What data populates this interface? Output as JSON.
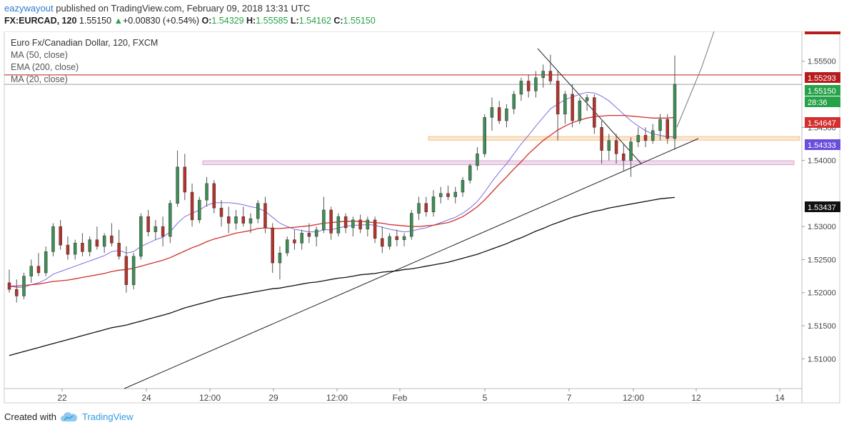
{
  "header": {
    "author": "eazywayout",
    "published_text": "published on TradingView.com, February 09, 2018 13:31 UTC",
    "symbol": "FX:EURCAD, 120",
    "last": "1.55150",
    "change_arrow": "▲",
    "change": "+0.00830 (+0.54%)",
    "o_label": "O:",
    "o_value": "1.54329",
    "h_label": "H:",
    "h_value": "1.55585",
    "l_label": "L:",
    "l_value": "1.54162",
    "c_label": "C:",
    "c_value": "1.55150"
  },
  "legend": {
    "title": "Euro Fx/Canadian Dollar, 120, FXCM",
    "items": [
      "MA (50, close)",
      "EMA (200, close)",
      "MA (20, close)"
    ]
  },
  "footer": {
    "created_with": "Created with",
    "brand": "TradingView",
    "logo_icon": "tradingview-cloud-icon"
  },
  "chart_data": {
    "type": "candlestick",
    "ylim": [
      1.5055,
      1.5595
    ],
    "y_ticks": [
      "1.55500",
      "1.54500",
      "1.54000",
      "1.53000",
      "1.52500",
      "1.52000",
      "1.51500",
      "1.51000"
    ],
    "x_ticks": [
      "22",
      "24",
      "12:00",
      "29",
      "12:00",
      "Feb",
      "5",
      "7",
      "12:00",
      "12",
      "14"
    ],
    "price_labels": [
      {
        "text": "1.55293",
        "value": 1.55293,
        "color": "#b71c1c"
      },
      {
        "text": "1.55150",
        "value": 1.5515,
        "color": "#26a248"
      },
      {
        "text": "28:36",
        "value": 1.55,
        "color": "#26a248"
      },
      {
        "text": "1.54647",
        "value": 1.54647,
        "color": "#d32f2f"
      },
      {
        "text": "1.54333",
        "value": 1.54333,
        "color": "#6a4ddb"
      },
      {
        "text": "1.53437",
        "value": 1.53437,
        "color": "#111111"
      }
    ],
    "horizontal_lines": [
      {
        "value": 1.55293,
        "color": "#b71c1c"
      },
      {
        "value": 1.5515,
        "color": "#9e9e9e"
      }
    ],
    "zones": [
      {
        "low": 1.54305,
        "high": 1.5436,
        "color": "#f6c48a",
        "fill": "#fbe7d3"
      },
      {
        "low": 1.53935,
        "high": 1.53995,
        "color": "#d9a6cf",
        "fill": "#f0dbea"
      }
    ],
    "candles": [
      {
        "o": 1.5215,
        "h": 1.5235,
        "l": 1.52,
        "c": 1.5205
      },
      {
        "o": 1.5205,
        "h": 1.522,
        "l": 1.5185,
        "c": 1.5195
      },
      {
        "o": 1.5195,
        "h": 1.523,
        "l": 1.519,
        "c": 1.5225
      },
      {
        "o": 1.5225,
        "h": 1.525,
        "l": 1.5215,
        "c": 1.524
      },
      {
        "o": 1.524,
        "h": 1.526,
        "l": 1.5225,
        "c": 1.523
      },
      {
        "o": 1.523,
        "h": 1.527,
        "l": 1.5225,
        "c": 1.5262
      },
      {
        "o": 1.5262,
        "h": 1.5305,
        "l": 1.5255,
        "c": 1.53
      },
      {
        "o": 1.53,
        "h": 1.531,
        "l": 1.5265,
        "c": 1.5272
      },
      {
        "o": 1.5272,
        "h": 1.5285,
        "l": 1.525,
        "c": 1.5258
      },
      {
        "o": 1.5258,
        "h": 1.528,
        "l": 1.525,
        "c": 1.5275
      },
      {
        "o": 1.5275,
        "h": 1.529,
        "l": 1.5255,
        "c": 1.5262
      },
      {
        "o": 1.5262,
        "h": 1.5285,
        "l": 1.5255,
        "c": 1.528
      },
      {
        "o": 1.528,
        "h": 1.53,
        "l": 1.5265,
        "c": 1.527
      },
      {
        "o": 1.527,
        "h": 1.529,
        "l": 1.526,
        "c": 1.5286
      },
      {
        "o": 1.5286,
        "h": 1.5305,
        "l": 1.527,
        "c": 1.5275
      },
      {
        "o": 1.5275,
        "h": 1.5295,
        "l": 1.525,
        "c": 1.5255
      },
      {
        "o": 1.5255,
        "h": 1.527,
        "l": 1.52,
        "c": 1.5212
      },
      {
        "o": 1.5212,
        "h": 1.526,
        "l": 1.5205,
        "c": 1.5255
      },
      {
        "o": 1.5255,
        "h": 1.532,
        "l": 1.525,
        "c": 1.5315
      },
      {
        "o": 1.5315,
        "h": 1.5325,
        "l": 1.5285,
        "c": 1.5292
      },
      {
        "o": 1.5292,
        "h": 1.531,
        "l": 1.528,
        "c": 1.53
      },
      {
        "o": 1.53,
        "h": 1.5315,
        "l": 1.527,
        "c": 1.5285
      },
      {
        "o": 1.5285,
        "h": 1.534,
        "l": 1.5275,
        "c": 1.5335
      },
      {
        "o": 1.5335,
        "h": 1.5415,
        "l": 1.533,
        "c": 1.539
      },
      {
        "o": 1.539,
        "h": 1.541,
        "l": 1.534,
        "c": 1.5352
      },
      {
        "o": 1.5352,
        "h": 1.5365,
        "l": 1.53,
        "c": 1.531
      },
      {
        "o": 1.531,
        "h": 1.5345,
        "l": 1.5305,
        "c": 1.534
      },
      {
        "o": 1.534,
        "h": 1.5375,
        "l": 1.533,
        "c": 1.5365
      },
      {
        "o": 1.5365,
        "h": 1.537,
        "l": 1.532,
        "c": 1.5328
      },
      {
        "o": 1.5328,
        "h": 1.534,
        "l": 1.53,
        "c": 1.5315
      },
      {
        "o": 1.5315,
        "h": 1.533,
        "l": 1.529,
        "c": 1.5305
      },
      {
        "o": 1.5305,
        "h": 1.5325,
        "l": 1.5295,
        "c": 1.5315
      },
      {
        "o": 1.5315,
        "h": 1.533,
        "l": 1.53,
        "c": 1.5305
      },
      {
        "o": 1.5305,
        "h": 1.532,
        "l": 1.529,
        "c": 1.5312
      },
      {
        "o": 1.5312,
        "h": 1.534,
        "l": 1.5305,
        "c": 1.5335
      },
      {
        "o": 1.5335,
        "h": 1.5345,
        "l": 1.529,
        "c": 1.5298
      },
      {
        "o": 1.5298,
        "h": 1.5305,
        "l": 1.523,
        "c": 1.5245
      },
      {
        "o": 1.5245,
        "h": 1.527,
        "l": 1.522,
        "c": 1.526
      },
      {
        "o": 1.526,
        "h": 1.5285,
        "l": 1.5255,
        "c": 1.528
      },
      {
        "o": 1.528,
        "h": 1.5295,
        "l": 1.5265,
        "c": 1.5275
      },
      {
        "o": 1.5275,
        "h": 1.5295,
        "l": 1.5265,
        "c": 1.529
      },
      {
        "o": 1.529,
        "h": 1.5305,
        "l": 1.5275,
        "c": 1.5285
      },
      {
        "o": 1.5285,
        "h": 1.53,
        "l": 1.527,
        "c": 1.5295
      },
      {
        "o": 1.5295,
        "h": 1.5345,
        "l": 1.529,
        "c": 1.5325
      },
      {
        "o": 1.5325,
        "h": 1.533,
        "l": 1.528,
        "c": 1.529
      },
      {
        "o": 1.529,
        "h": 1.532,
        "l": 1.5285,
        "c": 1.5315
      },
      {
        "o": 1.5315,
        "h": 1.532,
        "l": 1.529,
        "c": 1.5298
      },
      {
        "o": 1.5298,
        "h": 1.5315,
        "l": 1.5285,
        "c": 1.531
      },
      {
        "o": 1.531,
        "h": 1.5318,
        "l": 1.529,
        "c": 1.5296
      },
      {
        "o": 1.5296,
        "h": 1.5315,
        "l": 1.5285,
        "c": 1.531
      },
      {
        "o": 1.531,
        "h": 1.5315,
        "l": 1.5275,
        "c": 1.5282
      },
      {
        "o": 1.5282,
        "h": 1.53,
        "l": 1.526,
        "c": 1.527
      },
      {
        "o": 1.527,
        "h": 1.529,
        "l": 1.5265,
        "c": 1.5285
      },
      {
        "o": 1.5285,
        "h": 1.5295,
        "l": 1.527,
        "c": 1.528
      },
      {
        "o": 1.528,
        "h": 1.529,
        "l": 1.527,
        "c": 1.5285
      },
      {
        "o": 1.5285,
        "h": 1.5325,
        "l": 1.528,
        "c": 1.532
      },
      {
        "o": 1.532,
        "h": 1.5345,
        "l": 1.531,
        "c": 1.5335
      },
      {
        "o": 1.5335,
        "h": 1.5345,
        "l": 1.5315,
        "c": 1.5322
      },
      {
        "o": 1.5322,
        "h": 1.5355,
        "l": 1.5315,
        "c": 1.5345
      },
      {
        "o": 1.5345,
        "h": 1.536,
        "l": 1.5335,
        "c": 1.535
      },
      {
        "o": 1.535,
        "h": 1.5362,
        "l": 1.534,
        "c": 1.5345
      },
      {
        "o": 1.5345,
        "h": 1.536,
        "l": 1.5335,
        "c": 1.5352
      },
      {
        "o": 1.5352,
        "h": 1.5375,
        "l": 1.5345,
        "c": 1.537
      },
      {
        "o": 1.537,
        "h": 1.5395,
        "l": 1.5365,
        "c": 1.5392
      },
      {
        "o": 1.5392,
        "h": 1.542,
        "l": 1.5385,
        "c": 1.541
      },
      {
        "o": 1.541,
        "h": 1.547,
        "l": 1.5405,
        "c": 1.5465
      },
      {
        "o": 1.5465,
        "h": 1.5495,
        "l": 1.5445,
        "c": 1.548
      },
      {
        "o": 1.548,
        "h": 1.549,
        "l": 1.5455,
        "c": 1.546
      },
      {
        "o": 1.546,
        "h": 1.5485,
        "l": 1.545,
        "c": 1.5478
      },
      {
        "o": 1.5478,
        "h": 1.5505,
        "l": 1.547,
        "c": 1.55
      },
      {
        "o": 1.55,
        "h": 1.5525,
        "l": 1.549,
        "c": 1.552
      },
      {
        "o": 1.552,
        "h": 1.553,
        "l": 1.5495,
        "c": 1.5505
      },
      {
        "o": 1.5505,
        "h": 1.5535,
        "l": 1.5495,
        "c": 1.5525
      },
      {
        "o": 1.5525,
        "h": 1.5545,
        "l": 1.551,
        "c": 1.5535
      },
      {
        "o": 1.5535,
        "h": 1.556,
        "l": 1.5515,
        "c": 1.552
      },
      {
        "o": 1.552,
        "h": 1.5535,
        "l": 1.543,
        "c": 1.547
      },
      {
        "o": 1.547,
        "h": 1.5505,
        "l": 1.5455,
        "c": 1.55
      },
      {
        "o": 1.55,
        "h": 1.5515,
        "l": 1.545,
        "c": 1.546
      },
      {
        "o": 1.546,
        "h": 1.5495,
        "l": 1.5455,
        "c": 1.549
      },
      {
        "o": 1.549,
        "h": 1.55,
        "l": 1.5475,
        "c": 1.5495
      },
      {
        "o": 1.5495,
        "h": 1.55,
        "l": 1.544,
        "c": 1.545
      },
      {
        "o": 1.545,
        "h": 1.546,
        "l": 1.5395,
        "c": 1.5415
      },
      {
        "o": 1.5415,
        "h": 1.544,
        "l": 1.54,
        "c": 1.543
      },
      {
        "o": 1.543,
        "h": 1.544,
        "l": 1.5395,
        "c": 1.541
      },
      {
        "o": 1.541,
        "h": 1.5425,
        "l": 1.5385,
        "c": 1.54
      },
      {
        "o": 1.54,
        "h": 1.5435,
        "l": 1.5375,
        "c": 1.5428
      },
      {
        "o": 1.5428,
        "h": 1.545,
        "l": 1.542,
        "c": 1.5438
      },
      {
        "o": 1.5438,
        "h": 1.545,
        "l": 1.542,
        "c": 1.543
      },
      {
        "o": 1.543,
        "h": 1.5455,
        "l": 1.5425,
        "c": 1.5445
      },
      {
        "o": 1.5445,
        "h": 1.547,
        "l": 1.543,
        "c": 1.5462
      },
      {
        "o": 1.5462,
        "h": 1.547,
        "l": 1.5425,
        "c": 1.5433
      },
      {
        "o": 1.5433,
        "h": 1.55585,
        "l": 1.54162,
        "c": 1.5515
      }
    ],
    "series": [
      {
        "name": "MA (20, close)",
        "color": "#7b6fe0",
        "values": [
          1.521,
          1.5208,
          1.5208,
          1.5212,
          1.5215,
          1.522,
          1.5228,
          1.5232,
          1.5236,
          1.524,
          1.5244,
          1.5248,
          1.5252,
          1.5256,
          1.5262,
          1.5264,
          1.526,
          1.5262,
          1.527,
          1.5275,
          1.528,
          1.5284,
          1.5292,
          1.5305,
          1.5315,
          1.532,
          1.5325,
          1.5332,
          1.5336,
          1.5336,
          1.5336,
          1.5335,
          1.5333,
          1.533,
          1.5328,
          1.5323,
          1.5314,
          1.5305,
          1.53,
          1.5296,
          1.5294,
          1.5292,
          1.5292,
          1.5295,
          1.5295,
          1.5298,
          1.53,
          1.5302,
          1.5302,
          1.5303,
          1.5302,
          1.5299,
          1.5296,
          1.5294,
          1.5292,
          1.5293,
          1.5296,
          1.5298,
          1.5302,
          1.5306,
          1.531,
          1.5314,
          1.532,
          1.5328,
          1.5338,
          1.5352,
          1.5368,
          1.5382,
          1.5395,
          1.541,
          1.5425,
          1.5438,
          1.5452,
          1.5465,
          1.5478,
          1.5485,
          1.5492,
          1.5496,
          1.55,
          1.5503,
          1.5502,
          1.5497,
          1.549,
          1.548,
          1.547,
          1.546,
          1.5452,
          1.5445,
          1.544,
          1.5438,
          1.5436,
          1.5435
        ]
      },
      {
        "name": "MA (50, close)",
        "color": "#d0302b",
        "values": [
          1.521,
          1.521,
          1.5211,
          1.5212,
          1.5213,
          1.5215,
          1.5217,
          1.5218,
          1.5219,
          1.5221,
          1.5223,
          1.5225,
          1.5227,
          1.5229,
          1.5232,
          1.5234,
          1.5235,
          1.5237,
          1.524,
          1.5243,
          1.5246,
          1.5249,
          1.5253,
          1.5258,
          1.5263,
          1.5268,
          1.5272,
          1.5277,
          1.5281,
          1.5284,
          1.5287,
          1.529,
          1.5292,
          1.5294,
          1.5297,
          1.5298,
          1.5297,
          1.5297,
          1.5298,
          1.5299,
          1.53,
          1.5301,
          1.5303,
          1.5305,
          1.5306,
          1.5307,
          1.5308,
          1.5308,
          1.5308,
          1.5307,
          1.5306,
          1.5305,
          1.5303,
          1.5302,
          1.5301,
          1.53,
          1.53,
          1.5301,
          1.5302,
          1.5304,
          1.5306,
          1.531,
          1.5315,
          1.5322,
          1.533,
          1.534,
          1.5352,
          1.5364,
          1.5375,
          1.5387,
          1.5398,
          1.541,
          1.542,
          1.543,
          1.5438,
          1.5446,
          1.5452,
          1.5457,
          1.5461,
          1.5464,
          1.5466,
          1.5467,
          1.5468,
          1.5468,
          1.5468,
          1.5467,
          1.5466,
          1.5465,
          1.5464,
          1.5464,
          1.5464,
          1.5465
        ]
      },
      {
        "name": "EMA (200, close)",
        "color": "#111111",
        "values": [
          1.5105,
          1.5108,
          1.5111,
          1.5114,
          1.5117,
          1.512,
          1.5123,
          1.5126,
          1.5129,
          1.5132,
          1.5135,
          1.5138,
          1.5141,
          1.5144,
          1.5147,
          1.5149,
          1.5151,
          1.5154,
          1.5157,
          1.516,
          1.5163,
          1.5166,
          1.5169,
          1.5173,
          1.5177,
          1.518,
          1.5183,
          1.5186,
          1.5189,
          1.5192,
          1.5194,
          1.5196,
          1.5198,
          1.52,
          1.5202,
          1.5204,
          1.5206,
          1.5207,
          1.5209,
          1.5211,
          1.5213,
          1.5215,
          1.5216,
          1.5218,
          1.522,
          1.5222,
          1.5223,
          1.5225,
          1.5227,
          1.5228,
          1.5229,
          1.5231,
          1.5232,
          1.5233,
          1.5235,
          1.5236,
          1.5238,
          1.524,
          1.5242,
          1.5244,
          1.5246,
          1.5249,
          1.5252,
          1.5255,
          1.5258,
          1.5262,
          1.5266,
          1.527,
          1.5274,
          1.5279,
          1.5283,
          1.5288,
          1.5293,
          1.5297,
          1.5302,
          1.5306,
          1.531,
          1.5314,
          1.5317,
          1.532,
          1.5323,
          1.5325,
          1.5328,
          1.533,
          1.5332,
          1.5334,
          1.5336,
          1.5338,
          1.534,
          1.5342,
          1.5343,
          1.5344
        ]
      }
    ]
  }
}
